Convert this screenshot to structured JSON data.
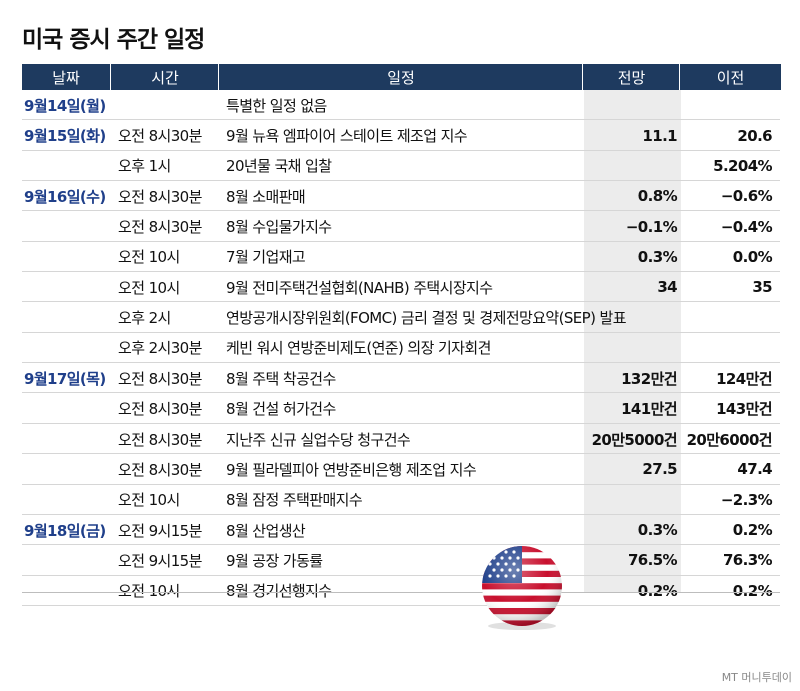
{
  "title": "미국 증시 주간 일정",
  "headers": [
    "날짜",
    "시간",
    "일정",
    "전망",
    "이전"
  ],
  "rows": [
    {
      "date": "9월14일(월)",
      "time": "",
      "event": "특별한 일정 없음",
      "forecast": "",
      "previous": ""
    },
    {
      "date": "9월15일(화)",
      "time": "오전 8시30분",
      "event": "9월 뉴욕 엠파이어 스테이트 제조업 지수",
      "forecast": "11.1",
      "previous": "20.6"
    },
    {
      "date": "",
      "time": "오후 1시",
      "event": "20년물 국채 입찰",
      "forecast": "",
      "previous": "5.204%"
    },
    {
      "date": "9월16일(수)",
      "time": "오전 8시30분",
      "event": "8월 소매판매",
      "forecast": "0.8%",
      "previous": "−0.6%"
    },
    {
      "date": "",
      "time": "오전 8시30분",
      "event": "8월 수입물가지수",
      "forecast": "−0.1%",
      "previous": "−0.4%"
    },
    {
      "date": "",
      "time": "오전 10시",
      "event": "7월 기업재고",
      "forecast": "0.3%",
      "previous": "0.0%"
    },
    {
      "date": "",
      "time": "오전 10시",
      "event": "9월 전미주택건설협회(NAHB) 주택시장지수",
      "forecast": "34",
      "previous": "35"
    },
    {
      "date": "",
      "time": "오후 2시",
      "event": "연방공개시장위원회(FOMC) 금리 결정 및 경제전망요약(SEP) 발표",
      "forecast": "",
      "previous": ""
    },
    {
      "date": "",
      "time": "오후 2시30분",
      "event": "케빈 워시 연방준비제도(연준) 의장 기자회견",
      "forecast": "",
      "previous": ""
    },
    {
      "date": "9월17일(목)",
      "time": "오전 8시30분",
      "event": "8월 주택 착공건수",
      "forecast": "132만건",
      "previous": "124만건"
    },
    {
      "date": "",
      "time": "오전 8시30분",
      "event": "8월 건설 허가건수",
      "forecast": "141만건",
      "previous": "143만건"
    },
    {
      "date": "",
      "time": "오전 8시30분",
      "event": "지난주 신규 실업수당 청구건수",
      "forecast": "20만5000건",
      "previous": "20만6000건"
    },
    {
      "date": "",
      "time": "오전 8시30분",
      "event": "9월 필라델피아 연방준비은행 제조업 지수",
      "forecast": "27.5",
      "previous": "47.4"
    },
    {
      "date": "",
      "time": "오전 10시",
      "event": "8월 잠정 주택판매지수",
      "forecast": "",
      "previous": "−2.3%"
    },
    {
      "date": "9월18일(금)",
      "time": "오전 9시15분",
      "event": "8월 산업생산",
      "forecast": "0.3%",
      "previous": "0.2%"
    },
    {
      "date": "",
      "time": "오전 9시15분",
      "event": "9월 공장 가동률",
      "forecast": "76.5%",
      "previous": "76.3%"
    },
    {
      "date": "",
      "time": "오전 10시",
      "event": "8월 경기선행지수",
      "forecast": "0.2%",
      "previous": "0.2%"
    }
  ],
  "watermark": "MT 머니투데이",
  "colors": {
    "header_bg": "#1e3a5f",
    "date_text": "#1f3f8a",
    "shade": "#ececec"
  }
}
